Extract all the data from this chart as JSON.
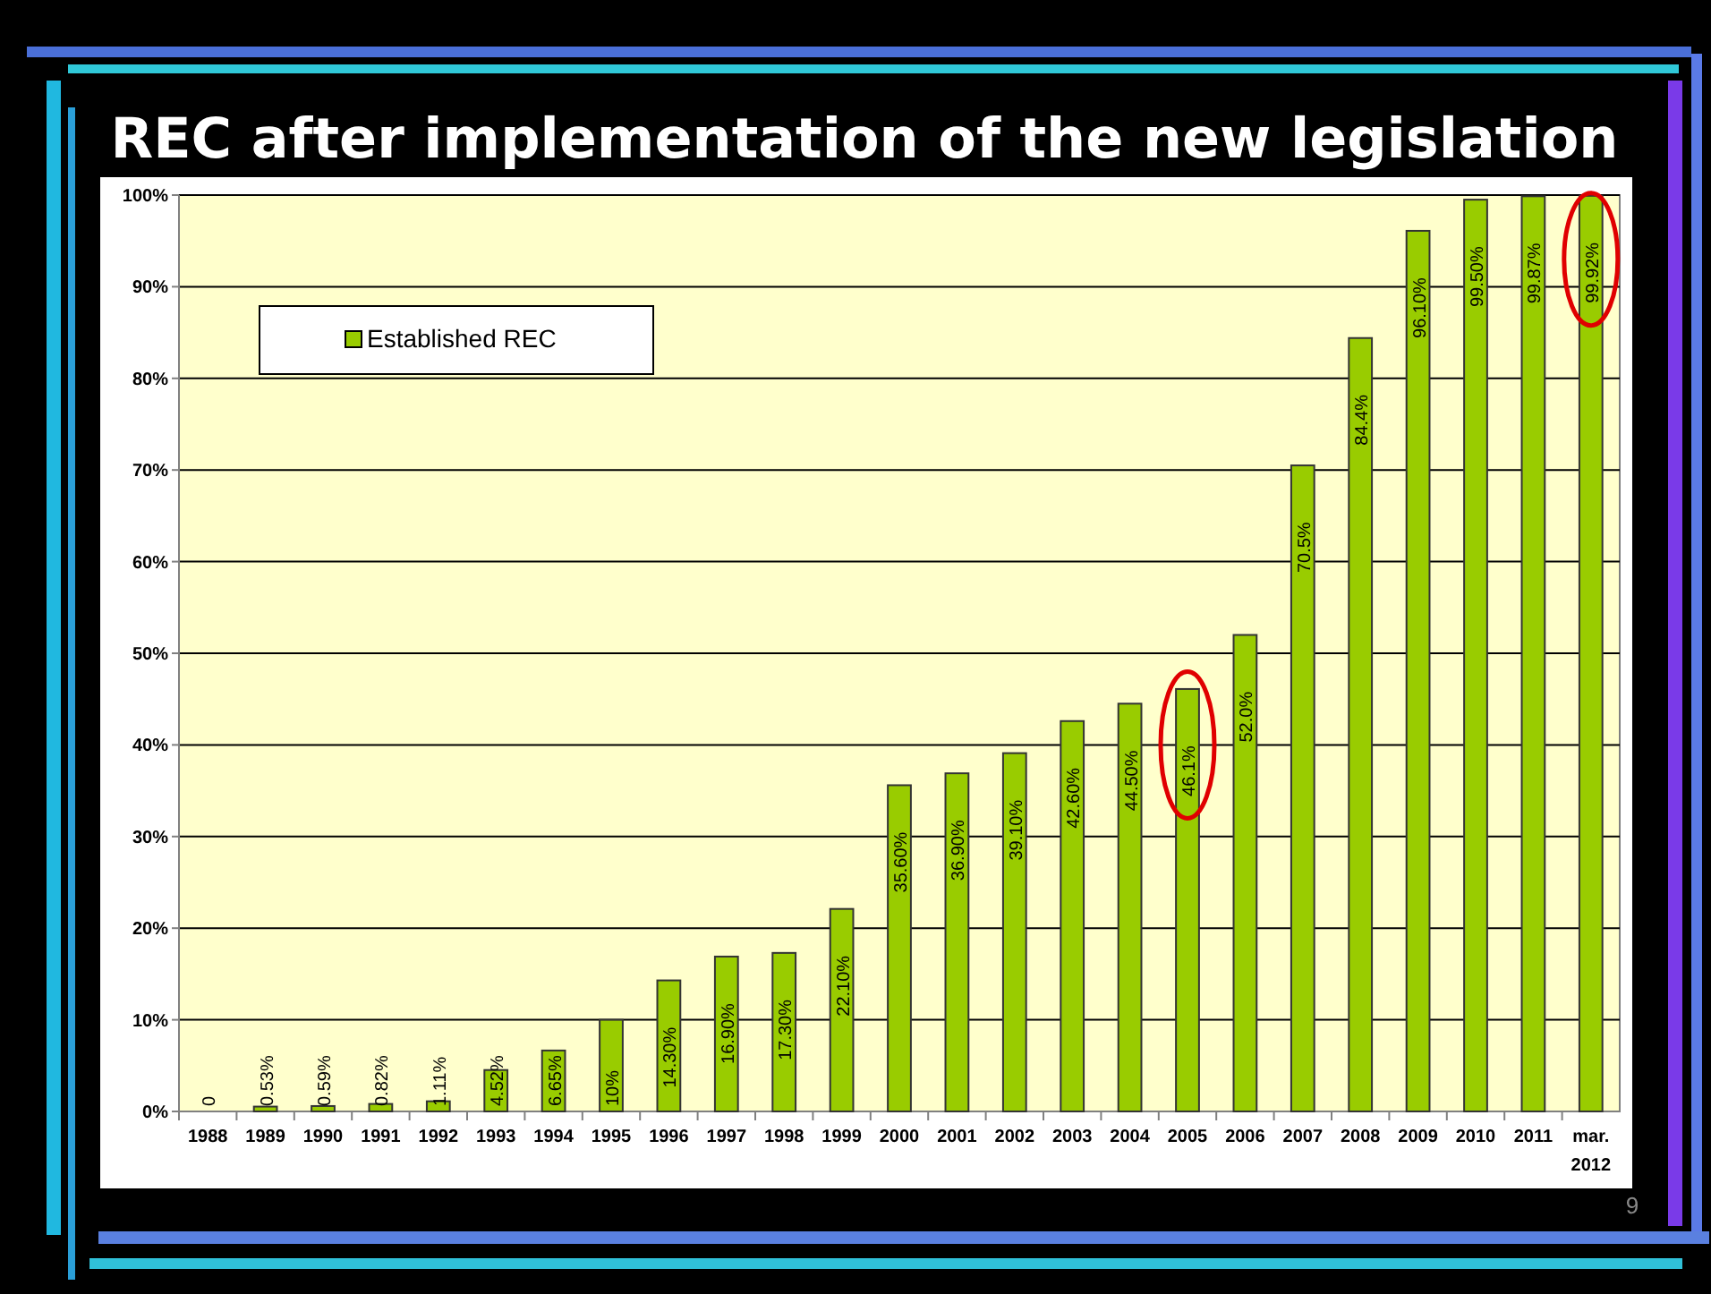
{
  "chart_data": {
    "type": "bar",
    "title": "REC after implementation of the new legislation",
    "categories": [
      "1988",
      "1989",
      "1990",
      "1991",
      "1992",
      "1993",
      "1994",
      "1995",
      "1996",
      "1997",
      "1998",
      "1999",
      "2000",
      "2001",
      "2002",
      "2003",
      "2004",
      "2005",
      "2006",
      "2007",
      "2008",
      "2009",
      "2010",
      "2011",
      "mar.\n2012"
    ],
    "series": [
      {
        "name": "Established REC",
        "color": "#99cc00",
        "values": [
          0,
          0.53,
          0.59,
          0.82,
          1.11,
          4.52,
          6.65,
          10,
          14.3,
          16.9,
          17.3,
          22.1,
          35.6,
          36.9,
          39.1,
          42.6,
          44.5,
          46.1,
          52.0,
          70.5,
          84.4,
          96.1,
          99.5,
          99.87,
          99.92
        ],
        "value_labels": [
          "0",
          "0.53%",
          "0.59%",
          "0.82%",
          "1.11%",
          "4.52%",
          "6.65%",
          "10%",
          "14.30%",
          "16.90%",
          "17.30%",
          "22.10%",
          "35.60%",
          "36.90%",
          "39.10%",
          "42.60%",
          "44.50%",
          "46.1%",
          "52.0%",
          "70.5%",
          "84.4%",
          "96.10%",
          "99.50%",
          "99.87%",
          "99.92%"
        ]
      }
    ],
    "ylim": [
      0,
      100
    ],
    "yticks": [
      {
        "value": 0,
        "label": "0%"
      },
      {
        "value": 10,
        "label": "10%"
      },
      {
        "value": 20,
        "label": "20%"
      },
      {
        "value": 30,
        "label": "30%"
      },
      {
        "value": 40,
        "label": "40%"
      },
      {
        "value": 50,
        "label": "50%"
      },
      {
        "value": 60,
        "label": "60%"
      },
      {
        "value": 70,
        "label": "70%"
      },
      {
        "value": 80,
        "label": "80%"
      },
      {
        "value": 90,
        "label": "90%"
      },
      {
        "value": 100,
        "label": "100%"
      }
    ],
    "grid": "y",
    "legend": "top left",
    "annotations": [
      "9"
    ]
  }
}
